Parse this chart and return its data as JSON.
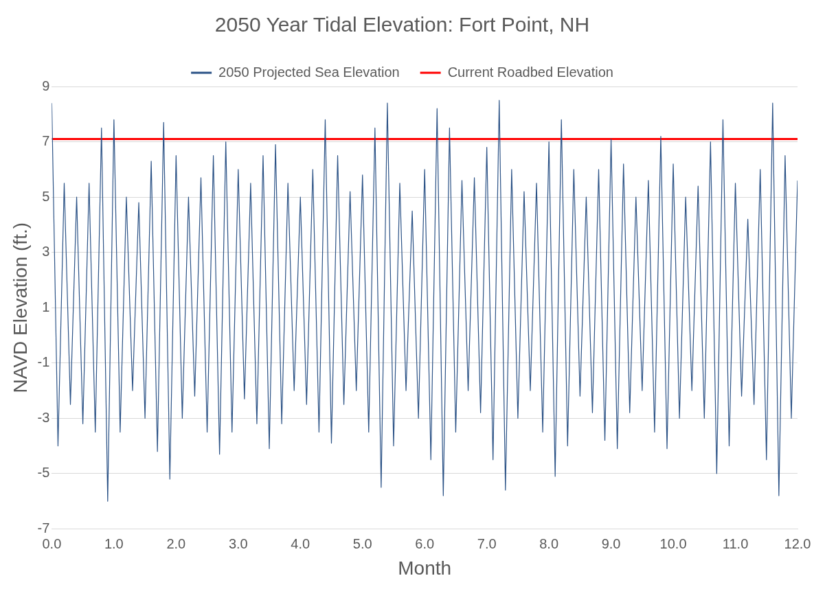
{
  "chart_data": {
    "type": "line",
    "title": "2050 Year Tidal Elevation: Fort Point, NH",
    "xlabel": "Month",
    "ylabel": "NAVD Elevation (ft.)",
    "legend": "top",
    "grid": "y",
    "marker": "none",
    "line_style": "solid",
    "xlim": [
      0,
      12
    ],
    "ylim": [
      -7,
      9
    ],
    "xticks": [
      {
        "value": 0,
        "label": "0.0"
      },
      {
        "value": 1,
        "label": "1.0"
      },
      {
        "value": 2,
        "label": "2.0"
      },
      {
        "value": 3,
        "label": "3.0"
      },
      {
        "value": 4,
        "label": "4.0"
      },
      {
        "value": 5,
        "label": "5.0"
      },
      {
        "value": 6,
        "label": "6.0"
      },
      {
        "value": 7,
        "label": "7.0"
      },
      {
        "value": 8,
        "label": "8.0"
      },
      {
        "value": 9,
        "label": "9.0"
      },
      {
        "value": 10,
        "label": "10.0"
      },
      {
        "value": 11,
        "label": "11.0"
      },
      {
        "value": 12,
        "label": "12.0"
      }
    ],
    "yticks": [
      -7,
      -5,
      -3,
      -1,
      1,
      3,
      5,
      7,
      9
    ],
    "series": [
      {
        "name": "2050 Projected Sea Elevation",
        "color": "#2b5286",
        "x": [
          0,
          0.1,
          0.2,
          0.3,
          0.4,
          0.5,
          0.6,
          0.7,
          0.8,
          0.9,
          1,
          1.1,
          1.2,
          1.3,
          1.4,
          1.5,
          1.6,
          1.7,
          1.8,
          1.9,
          2,
          2.1,
          2.2,
          2.3,
          2.4,
          2.5,
          2.6,
          2.7,
          2.8,
          2.9,
          3,
          3.1,
          3.2,
          3.3,
          3.4,
          3.5,
          3.6,
          3.7,
          3.8,
          3.9,
          4,
          4.1,
          4.2,
          4.3,
          4.4,
          4.5,
          4.6,
          4.7,
          4.8,
          4.9,
          5,
          5.1,
          5.2,
          5.3,
          5.4,
          5.5,
          5.6,
          5.7,
          5.8,
          5.9,
          6,
          6.1,
          6.2,
          6.3,
          6.4,
          6.5,
          6.6,
          6.7,
          6.8,
          6.9,
          7,
          7.1,
          7.2,
          7.3,
          7.4,
          7.5,
          7.6,
          7.7,
          7.8,
          7.9,
          8,
          8.1,
          8.2,
          8.3,
          8.4,
          8.5,
          8.6,
          8.7,
          8.8,
          8.9,
          9,
          9.1,
          9.2,
          9.3,
          9.4,
          9.5,
          9.6,
          9.7,
          9.8,
          9.9,
          10,
          10.1,
          10.2,
          10.3,
          10.4,
          10.5,
          10.6,
          10.7,
          10.8,
          10.9,
          11,
          11.1,
          11.2,
          11.3,
          11.4,
          11.5,
          11.6,
          11.7,
          11.8,
          11.9,
          12
        ],
        "values": [
          8.4,
          -4.0,
          5.5,
          -2.5,
          5.0,
          -3.2,
          5.5,
          -3.5,
          7.5,
          -6.0,
          7.8,
          -3.5,
          5.0,
          -2.0,
          4.8,
          -3.0,
          6.3,
          -4.2,
          7.7,
          -5.2,
          6.5,
          -3.0,
          5.0,
          -2.2,
          5.7,
          -3.5,
          6.5,
          -4.3,
          7.0,
          -3.5,
          6.0,
          -2.3,
          5.5,
          -3.2,
          6.5,
          -4.1,
          6.9,
          -3.2,
          5.5,
          -2.0,
          5.0,
          -2.5,
          6.0,
          -3.5,
          7.8,
          -3.9,
          6.5,
          -2.5,
          5.2,
          -2.0,
          5.8,
          -3.5,
          7.5,
          -5.5,
          8.4,
          -4.0,
          5.5,
          -2.0,
          4.5,
          -3.0,
          6.0,
          -4.5,
          8.2,
          -5.8,
          7.5,
          -3.5,
          5.6,
          -2.0,
          5.7,
          -2.8,
          6.8,
          -4.5,
          8.5,
          -5.6,
          6.0,
          -3.0,
          5.2,
          -2.0,
          5.5,
          -3.5,
          7.0,
          -5.1,
          7.8,
          -4.0,
          6.0,
          -2.2,
          5.0,
          -2.8,
          6.0,
          -3.8,
          7.1,
          -4.1,
          6.2,
          -2.8,
          5.0,
          -2.0,
          5.6,
          -3.5,
          7.2,
          -4.1,
          6.2,
          -3.0,
          5.0,
          -2.0,
          5.4,
          -3.0,
          7.0,
          -5.0,
          7.8,
          -4.0,
          5.5,
          -2.2,
          4.2,
          -2.5,
          6.0,
          -4.5,
          8.4,
          -5.8,
          6.5,
          -3.0,
          5.6
        ]
      },
      {
        "name": "Current Roadbed Elevation",
        "color": "#ff0000",
        "x": [
          0,
          12
        ],
        "values": [
          7.1,
          7.1
        ]
      }
    ]
  }
}
